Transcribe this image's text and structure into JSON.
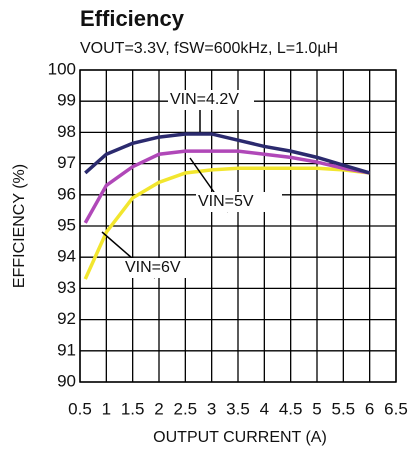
{
  "chart_data": {
    "type": "line",
    "title": "Efficiency",
    "subtitle": "VOUT=3.3V, fSW=600kHz, L=1.0µH",
    "xlabel": "OUTPUT CURRENT (A)",
    "ylabel": "EFFICIENCY (%)",
    "x": [
      0.6,
      1,
      1.5,
      2,
      2.5,
      3,
      3.5,
      4,
      4.5,
      5,
      5.5,
      6
    ],
    "series": [
      {
        "name": "VIN=4.2V",
        "color": "#2b2a6e",
        "values": [
          96.7,
          97.3,
          97.65,
          97.85,
          97.95,
          97.95,
          97.75,
          97.55,
          97.4,
          97.2,
          96.95,
          96.7
        ]
      },
      {
        "name": "VIN=5V",
        "color": "#b048b8",
        "values": [
          95.1,
          96.3,
          96.9,
          97.3,
          97.4,
          97.4,
          97.4,
          97.3,
          97.2,
          97.05,
          96.85,
          96.7
        ]
      },
      {
        "name": "VIN=6V",
        "color": "#f2e62e",
        "values": [
          93.3,
          94.8,
          95.9,
          96.4,
          96.7,
          96.8,
          96.85,
          96.85,
          96.85,
          96.85,
          96.8,
          96.7
        ]
      }
    ],
    "xlim": [
      0.5,
      6.5
    ],
    "xticks": [
      0.5,
      1,
      1.5,
      2,
      2.5,
      3,
      3.5,
      4,
      4.5,
      5,
      5.5,
      6,
      6.5
    ],
    "ylim": [
      90,
      100
    ],
    "yticks": [
      90,
      91,
      92,
      93,
      94,
      95,
      96,
      97,
      98,
      99,
      100
    ],
    "grid": true
  }
}
